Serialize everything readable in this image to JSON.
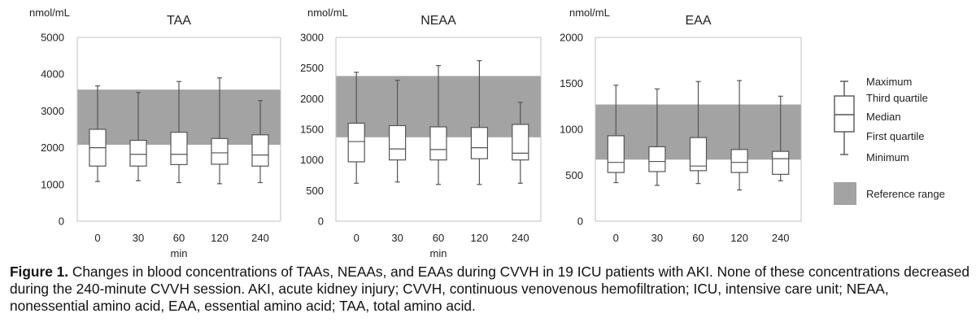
{
  "colors": {
    "reference_band": "#a3a3a3",
    "box_fill": "#ffffff",
    "stroke": "#555555",
    "axis": "#c0c0c0"
  },
  "chart_data": [
    {
      "type": "boxplot",
      "title": "TAA",
      "ylabel": "nmol/mL",
      "xlabel": "min",
      "categories": [
        "0",
        "30",
        "60",
        "120",
        "240"
      ],
      "ylim": [
        0,
        5000
      ],
      "yticks": [
        0,
        1000,
        2000,
        3000,
        4000,
        5000
      ],
      "reference_range": [
        2080,
        3580
      ],
      "boxes": [
        {
          "min": 1080,
          "q1": 1500,
          "median": 2000,
          "q3": 2500,
          "max": 3680
        },
        {
          "min": 1100,
          "q1": 1500,
          "median": 1820,
          "q3": 2200,
          "max": 3500
        },
        {
          "min": 1050,
          "q1": 1540,
          "median": 1820,
          "q3": 2420,
          "max": 3800
        },
        {
          "min": 1020,
          "q1": 1550,
          "median": 1860,
          "q3": 2250,
          "max": 3900
        },
        {
          "min": 1050,
          "q1": 1500,
          "median": 1800,
          "q3": 2350,
          "max": 3280
        }
      ]
    },
    {
      "type": "boxplot",
      "title": "NEAA",
      "ylabel": "nmol/mL",
      "xlabel": "min",
      "categories": [
        "0",
        "30",
        "60",
        "120",
        "240"
      ],
      "ylim": [
        0,
        3000
      ],
      "yticks": [
        0,
        500,
        1000,
        1500,
        2000,
        2500,
        3000
      ],
      "reference_range": [
        1370,
        2370
      ],
      "boxes": [
        {
          "min": 620,
          "q1": 970,
          "median": 1300,
          "q3": 1600,
          "max": 2430
        },
        {
          "min": 640,
          "q1": 1000,
          "median": 1180,
          "q3": 1560,
          "max": 2300
        },
        {
          "min": 600,
          "q1": 1000,
          "median": 1170,
          "q3": 1540,
          "max": 2540
        },
        {
          "min": 600,
          "q1": 1020,
          "median": 1200,
          "q3": 1530,
          "max": 2620
        },
        {
          "min": 620,
          "q1": 1000,
          "median": 1110,
          "q3": 1580,
          "max": 1940
        }
      ]
    },
    {
      "type": "boxplot",
      "title": "EAA",
      "ylabel": "nmol/mL",
      "xlabel": "",
      "categories": [
        "0",
        "30",
        "60",
        "120",
        "240"
      ],
      "ylim": [
        0,
        2000
      ],
      "yticks": [
        0,
        500,
        1000,
        1500,
        2000
      ],
      "reference_range": [
        670,
        1270
      ],
      "boxes": [
        {
          "min": 420,
          "q1": 530,
          "median": 640,
          "q3": 930,
          "max": 1480
        },
        {
          "min": 390,
          "q1": 540,
          "median": 650,
          "q3": 810,
          "max": 1440
        },
        {
          "min": 410,
          "q1": 550,
          "median": 600,
          "q3": 910,
          "max": 1520
        },
        {
          "min": 340,
          "q1": 530,
          "median": 640,
          "q3": 780,
          "max": 1530
        },
        {
          "min": 440,
          "q1": 510,
          "median": 680,
          "q3": 760,
          "max": 1360
        }
      ]
    }
  ],
  "legend": {
    "maximum": "Maximum",
    "third_quartile": "Third quartile",
    "median": "Median",
    "first_quartile": "First quartile",
    "minimum": "Minimum",
    "reference_range": "Reference range"
  },
  "caption": {
    "label": "Figure 1.",
    "text": " Changes in blood concentrations of TAAs, NEAAs, and EAAs during CVVH in 19 ICU patients with AKI. None of these concentrations decreased during the 240-minute CVVH session. AKI, acute kidney injury; CVVH, continuous venovenous hemofiltration; ICU, intensive care unit; NEAA, nonessential amino acid, EAA, essential amino acid; TAA, total amino acid."
  }
}
